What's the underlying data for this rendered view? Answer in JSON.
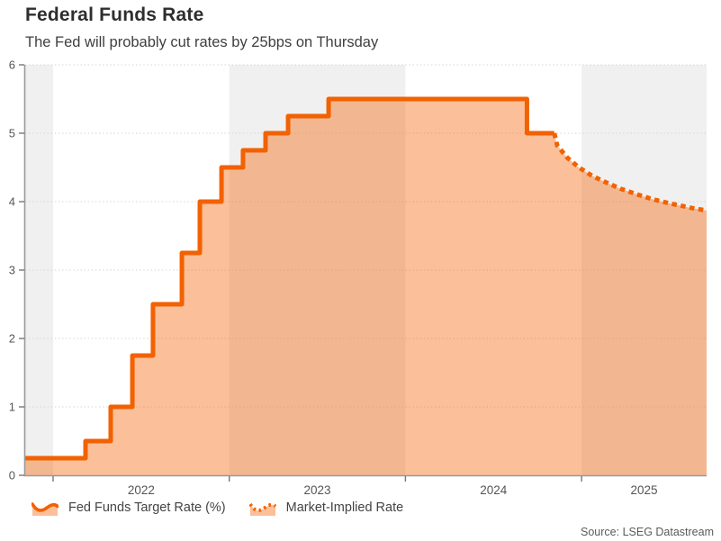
{
  "header": {
    "title": "Federal Funds Rate",
    "subtitle": "The Fed will probably cut rates by 25bps on Thursday"
  },
  "footer": {
    "source": "Source: LSEG Datastream"
  },
  "legend": {
    "items": [
      {
        "label": "Fed Funds Target Rate (%)",
        "style": "solid"
      },
      {
        "label": "Market-Implied Rate",
        "style": "dotted"
      }
    ]
  },
  "colors": {
    "line": "#f26102",
    "area": "rgba(244,98,0,0.40)",
    "band": "#f0f0f0",
    "grid": "#d6d6d6",
    "axis": "#9a9a9a",
    "tick": "#777777",
    "tick_text": "#555555",
    "title_text": "#2e2e2e",
    "subtitle_text": "#3f3f3f",
    "legend_text": "#444444",
    "source_text": "#5a5a5a"
  },
  "chart_data": {
    "type": "line",
    "title": "Federal Funds Rate",
    "xlabel": "",
    "ylabel": "",
    "ylim": [
      0,
      6
    ],
    "y_ticks": [
      0,
      1,
      2,
      3,
      4,
      5,
      6
    ],
    "x_domain_years": [
      2021.842,
      2025.71
    ],
    "x_tick_years": [
      "2022",
      "2023",
      "2024",
      "2025"
    ],
    "shaded_years": [
      2021,
      2023,
      2025
    ],
    "grid": "dotted-horizontal",
    "legend_position": "bottom-left",
    "series": [
      {
        "name": "Fed Funds Target Rate (%)",
        "type": "step-area",
        "line_style": "solid",
        "steps": [
          {
            "date": "2021-11",
            "t": 2021.842,
            "rate": 0.25
          },
          {
            "date": "2022-03-17",
            "t": 2022.184,
            "rate": 0.5
          },
          {
            "date": "2022-05-05",
            "t": 2022.327,
            "rate": 1.0
          },
          {
            "date": "2022-06-16",
            "t": 2022.45,
            "rate": 1.75
          },
          {
            "date": "2022-07-28",
            "t": 2022.567,
            "rate": 2.5
          },
          {
            "date": "2022-09-22",
            "t": 2022.731,
            "rate": 3.25
          },
          {
            "date": "2022-11-03",
            "t": 2022.833,
            "rate": 4.0
          },
          {
            "date": "2022-12-15",
            "t": 2022.956,
            "rate": 4.5
          },
          {
            "date": "2023-02-02",
            "t": 2023.078,
            "rate": 4.75
          },
          {
            "date": "2023-03-23",
            "t": 2023.206,
            "rate": 5.0
          },
          {
            "date": "2023-05-04",
            "t": 2023.334,
            "rate": 5.25
          },
          {
            "date": "2023-07-27",
            "t": 2023.564,
            "rate": 5.5
          },
          {
            "date": "2024-09-19",
            "t": 2024.69,
            "rate": 5.0
          }
        ],
        "end_t": 2024.845
      },
      {
        "name": "Market-Implied Rate",
        "type": "line-area",
        "line_style": "dotted",
        "points": [
          [
            2024.845,
            5.0
          ],
          [
            2024.862,
            4.82
          ],
          [
            2024.92,
            4.64
          ],
          [
            2024.985,
            4.5
          ],
          [
            2025.058,
            4.38
          ],
          [
            2025.14,
            4.28
          ],
          [
            2025.22,
            4.19
          ],
          [
            2025.31,
            4.11
          ],
          [
            2025.41,
            4.03
          ],
          [
            2025.51,
            3.97
          ],
          [
            2025.62,
            3.91
          ],
          [
            2025.71,
            3.87
          ]
        ]
      }
    ]
  }
}
